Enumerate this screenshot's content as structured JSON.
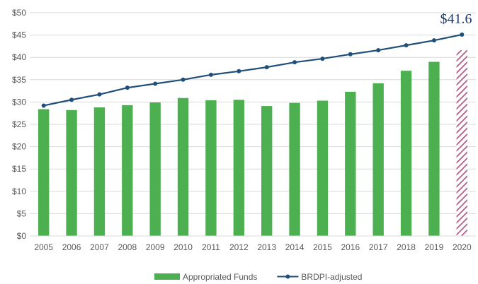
{
  "chart_data": {
    "type": "bar",
    "title": "",
    "xlabel": "",
    "ylabel": "",
    "ylim": [
      0,
      50
    ],
    "ytick_step": 5,
    "ytick_labels": [
      "$0",
      "$5",
      "$10",
      "$15",
      "$20",
      "$25",
      "$30",
      "$35",
      "$40",
      "$45",
      "$50"
    ],
    "grid": "horizontal",
    "legend_position": "bottom",
    "categories": [
      "2005",
      "2006",
      "2007",
      "2008",
      "2009",
      "2010",
      "2011",
      "2012",
      "2013",
      "2014",
      "2015",
      "2016",
      "2017",
      "2018",
      "2019",
      "2020"
    ],
    "series": [
      {
        "name": "Appropriated Funds",
        "kind": "bar",
        "color": "#4caf50",
        "values": [
          28.4,
          28.2,
          28.8,
          29.3,
          29.9,
          30.9,
          30.4,
          30.5,
          29.1,
          29.8,
          30.3,
          32.3,
          34.2,
          37.0,
          39.0,
          41.6
        ],
        "hatched_categories": [
          "2020"
        ],
        "hatch_color": "#b05a8a"
      },
      {
        "name": "BRDPI-adjusted",
        "kind": "line",
        "color": "#1f4e79",
        "values": [
          29.2,
          30.5,
          31.7,
          33.2,
          34.1,
          35.0,
          36.1,
          36.9,
          37.8,
          38.9,
          39.7,
          40.7,
          41.6,
          42.7,
          43.8,
          45.1
        ]
      }
    ],
    "annotations": [
      {
        "text": "$41.6",
        "category": "2020",
        "color": "#1f3864"
      }
    ]
  }
}
